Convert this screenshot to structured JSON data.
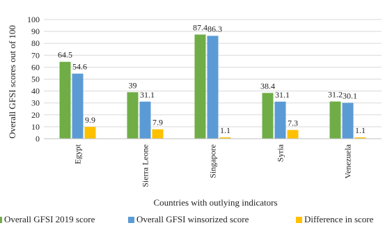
{
  "chart_data": {
    "type": "bar",
    "categories": [
      "Egypt",
      "Sierra Leone",
      "Singapore",
      "Syria",
      "Venezuela"
    ],
    "series": [
      {
        "name": "Overall GFSI 2019 score",
        "values": [
          64.5,
          39,
          87.4,
          38.4,
          31.2
        ],
        "labels": [
          "64.5",
          "39",
          "87.4",
          "38.4",
          "31.2"
        ],
        "color": "#70AD47"
      },
      {
        "name": "Overall GFSI  winsorized score",
        "values": [
          54.6,
          31.1,
          86.3,
          31.1,
          30.1
        ],
        "labels": [
          "54.6",
          "31.1",
          "86.3",
          "31.1",
          "30.1"
        ],
        "color": "#5B9BD5"
      },
      {
        "name": "Difference in score",
        "values": [
          9.9,
          7.9,
          1.1,
          7.3,
          1.1
        ],
        "labels": [
          "9.9",
          "7.9",
          "1.1",
          "7.3",
          "1.1"
        ],
        "color": "#FFC000"
      }
    ],
    "xlabel": "Countries with outlying indicators",
    "ylabel": "Overall GFSI scores out of 100",
    "ylim": [
      0,
      100
    ],
    "yticks": [
      "0",
      "10",
      "20",
      "30",
      "40",
      "50",
      "60",
      "70",
      "80",
      "90",
      "100"
    ],
    "grid": true,
    "legend": "bottom"
  }
}
